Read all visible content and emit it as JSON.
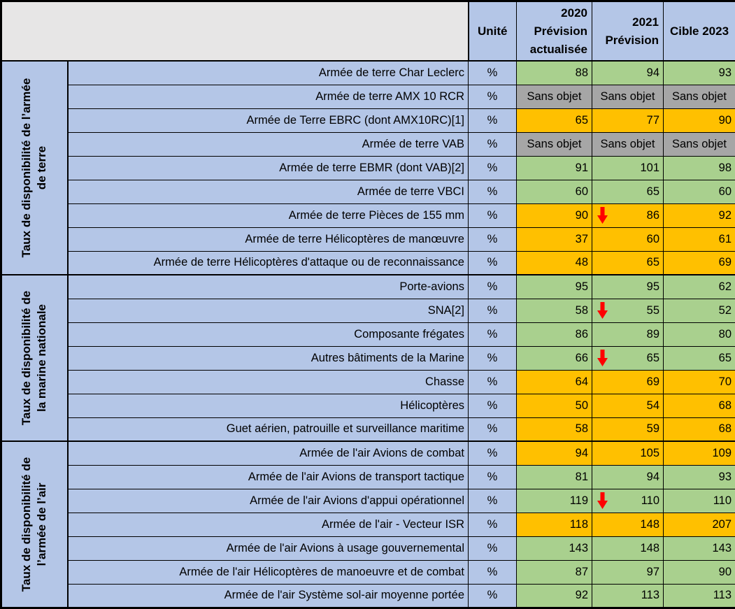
{
  "table": {
    "header": {
      "unit": "Unité",
      "col_2020_lines": [
        "2020",
        "Prévision",
        "actualisée"
      ],
      "col_2021_lines": [
        "2021",
        "Prévision"
      ],
      "col_target": "Cible 2023"
    },
    "groups": [
      {
        "label_lines": [
          "Taux de disponibilité de l’armée",
          "de terre"
        ],
        "rows": [
          {
            "label": "Armée de terre Char Leclerc",
            "unit": "%",
            "values": [
              "88",
              "94",
              "93"
            ],
            "color": "green"
          },
          {
            "label": "Armée de terre AMX 10 RCR",
            "unit": "%",
            "values": [
              "Sans objet",
              "Sans objet",
              "Sans objet"
            ],
            "color": "gray"
          },
          {
            "label": "Armée de Terre EBRC (dont AMX10RC)[1]",
            "unit": "%",
            "values": [
              "65",
              "77",
              "90"
            ],
            "color": "orange"
          },
          {
            "label": "Armée de terre VAB",
            "unit": "%",
            "values": [
              "Sans objet",
              "Sans objet",
              "Sans objet"
            ],
            "color": "gray"
          },
          {
            "label": "Armée de terre EBMR (dont VAB)[2]",
            "unit": "%",
            "values": [
              "91",
              "101",
              "98"
            ],
            "color": "green"
          },
          {
            "label": "Armée de terre VBCI",
            "unit": "%",
            "values": [
              "60",
              "65",
              "60"
            ],
            "color": "green"
          },
          {
            "label": "Armée de terre Pièces de 155 mm",
            "unit": "%",
            "values": [
              "90",
              "86",
              "92"
            ],
            "color": "orange",
            "arrow_col": 1
          },
          {
            "label": "Armée de terre Hélicoptères de manœuvre",
            "unit": "%",
            "values": [
              "37",
              "60",
              "61"
            ],
            "color": "orange"
          },
          {
            "label": "Armée de terre Hélicoptères d'attaque ou de reconnaissance",
            "unit": "%",
            "values": [
              "48",
              "65",
              "69"
            ],
            "color": "orange"
          }
        ]
      },
      {
        "label_lines": [
          "Taux de disponibilité de",
          "la marine nationale"
        ],
        "rows": [
          {
            "label": "Porte-avions",
            "unit": "%",
            "values": [
              "95",
              "95",
              "62"
            ],
            "color": "green"
          },
          {
            "label": "SNA[2]",
            "unit": "%",
            "values": [
              "58",
              "55",
              "52"
            ],
            "color": "green",
            "arrow_col": 1
          },
          {
            "label": "Composante frégates",
            "unit": "%",
            "values": [
              "86",
              "89",
              "80"
            ],
            "color": "green"
          },
          {
            "label": "Autres bâtiments de la Marine",
            "unit": "%",
            "values": [
              "66",
              "65",
              "65"
            ],
            "color": "green",
            "arrow_col": 1
          },
          {
            "label": "Chasse",
            "unit": "%",
            "values": [
              "64",
              "69",
              "70"
            ],
            "color": "orange"
          },
          {
            "label": "Hélicoptères",
            "unit": "%",
            "values": [
              "50",
              "54",
              "68"
            ],
            "color": "orange"
          },
          {
            "label": "Guet aérien, patrouille et surveillance maritime",
            "unit": "%",
            "values": [
              "58",
              "59",
              "68"
            ],
            "color": "orange"
          }
        ]
      },
      {
        "label_lines": [
          "Taux de disponibilité de",
          "l’armée de l’air"
        ],
        "rows": [
          {
            "label": "Armée de l'air Avions de combat",
            "unit": "%",
            "values": [
              "94",
              "105",
              "109"
            ],
            "color": "orange"
          },
          {
            "label": "Armée de l'air Avions de transport tactique",
            "unit": "%",
            "values": [
              "81",
              "94",
              "93"
            ],
            "color": "green"
          },
          {
            "label": "Armée de l'air Avions d'appui opérationnel",
            "unit": "%",
            "values": [
              "119",
              "110",
              "110"
            ],
            "color": "green",
            "arrow_col": 1
          },
          {
            "label": "Armée de l'air - Vecteur ISR",
            "unit": "%",
            "values": [
              "118",
              "148",
              "207"
            ],
            "color": "orange"
          },
          {
            "label": "Armée de l'air Avions à usage gouvernemental",
            "unit": "%",
            "values": [
              "143",
              "148",
              "143"
            ],
            "color": "green"
          },
          {
            "label": "Armée de l'air Hélicoptères de manoeuvre et de combat",
            "unit": "%",
            "values": [
              "87",
              "97",
              "90"
            ],
            "color": "green"
          },
          {
            "label": "Armée de l'air Système sol-air moyenne portée",
            "unit": "%",
            "values": [
              "92",
              "113",
              "113"
            ],
            "color": "green"
          }
        ]
      }
    ],
    "icons": {
      "decrease_arrow": "red-down-arrow"
    },
    "colors": {
      "header_blue": "#B4C6E7",
      "corner_gray": "#E7E6E6",
      "status_green": "#A9D08E",
      "status_orange": "#FFC000",
      "status_gray": "#A6A6A6",
      "arrow_red": "#FF0000",
      "border_black": "#000000"
    }
  }
}
